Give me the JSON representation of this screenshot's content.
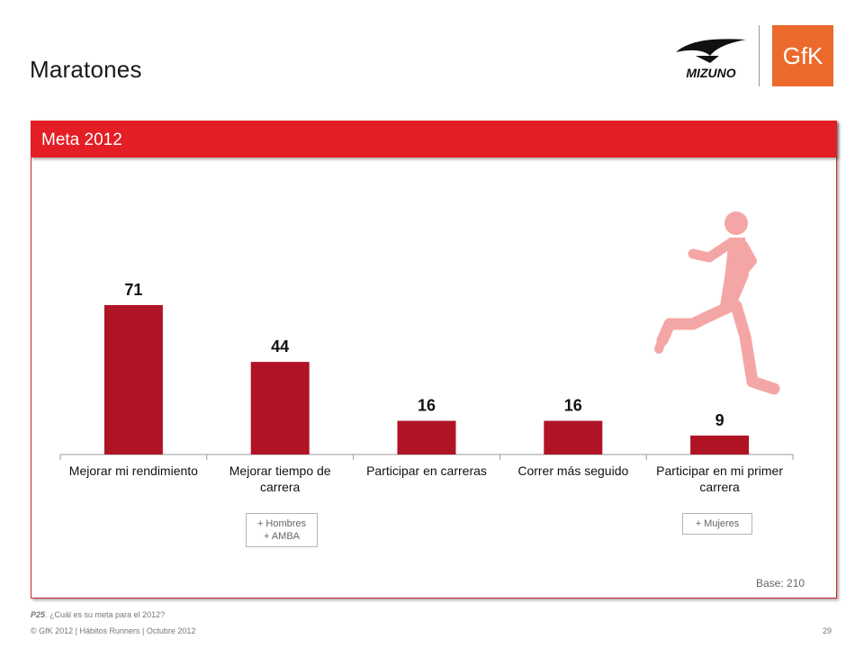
{
  "header": {
    "title": "Maratones",
    "brand_left": "MIZUNO",
    "brand_right": "GfK"
  },
  "panel": {
    "title": "Meta 2012",
    "base_note": "Base: 210"
  },
  "notes": [
    {
      "lines": [
        "+ Hombres",
        "+ AMBA"
      ]
    },
    {
      "lines": [
        "+ Mujeres"
      ]
    }
  ],
  "footer": {
    "question_code": "P25",
    "question_text": ". ¿Cuál es su meta para el 2012?",
    "copyright": "© GfK 2012 | Hábitos Runners  | Octubre 2012",
    "page_number": "29"
  },
  "chart_data": {
    "type": "bar",
    "title": "",
    "xlabel": "",
    "ylabel": "",
    "categories": [
      "Mejorar mi rendimiento",
      "Mejorar tiempo de carrera",
      "Participar en carreras",
      "Correr más seguido",
      "Participar en mi primer carrera"
    ],
    "values": [
      71,
      44,
      16,
      16,
      9
    ],
    "ylim": [
      0,
      90
    ],
    "grid": false,
    "legend": "none",
    "bar_color": "#b01424"
  },
  "colors": {
    "accent": "#e31e24",
    "bar": "#b01424",
    "runner": "#f4a6a6"
  }
}
